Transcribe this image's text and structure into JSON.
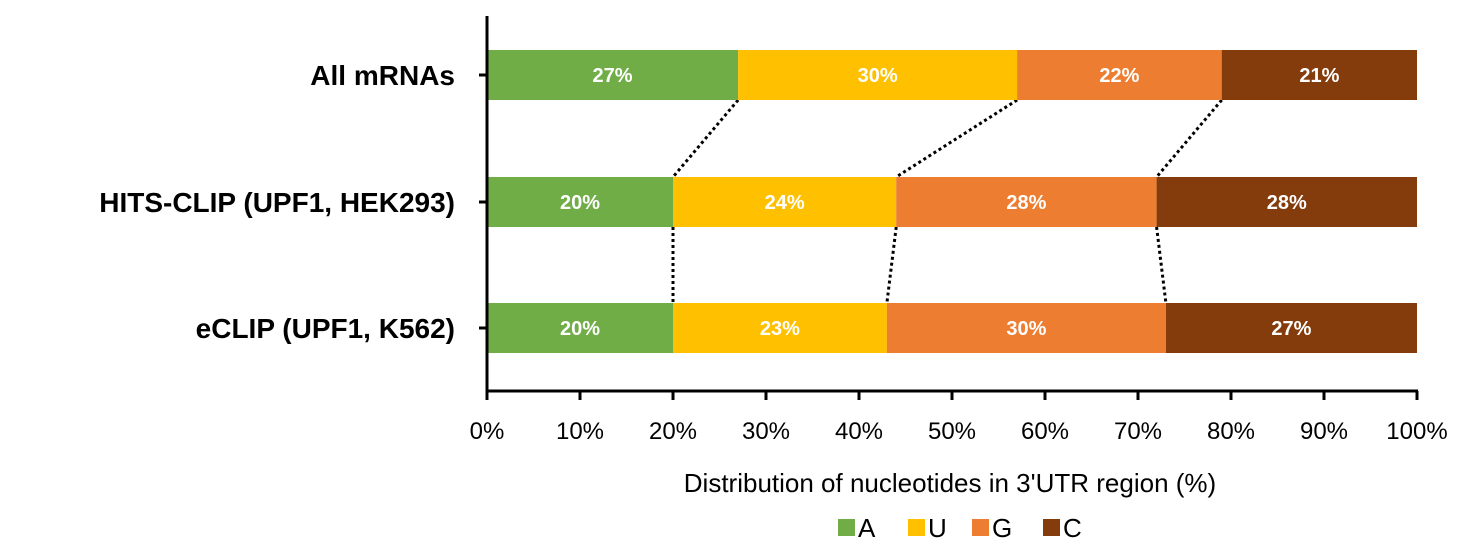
{
  "chart_data": {
    "type": "bar",
    "orientation": "horizontal",
    "stacked": "100%",
    "categories": [
      "All mRNAs",
      "HITS-CLIP (UPF1, HEK293)",
      "eCLIP (UPF1, K562)"
    ],
    "series": [
      {
        "name": "A",
        "color": "#70AD47",
        "values": [
          27,
          20,
          20
        ],
        "labels": [
          "27%",
          "20%",
          "20%"
        ]
      },
      {
        "name": "U",
        "color": "#FFC000",
        "values": [
          30,
          24,
          23
        ],
        "labels": [
          "30%",
          "24%",
          "23%"
        ]
      },
      {
        "name": "G",
        "color": "#ED7D31",
        "values": [
          22,
          28,
          30
        ],
        "labels": [
          "22%",
          "28%",
          "30%"
        ]
      },
      {
        "name": "C",
        "color": "#843C0C",
        "values": [
          21,
          28,
          27
        ],
        "labels": [
          "21%",
          "28%",
          "27%"
        ]
      }
    ],
    "xlabel": "Distribution of nucleotides in 3'UTR region (%)",
    "ylabel": "",
    "xlim": [
      0,
      100
    ],
    "xticks": [
      "0%",
      "10%",
      "20%",
      "30%",
      "40%",
      "50%",
      "60%",
      "70%",
      "80%",
      "90%",
      "100%"
    ],
    "grid": false,
    "legend": "bottom",
    "series_lines": "dotted connectors between series boundaries of adjacent bars"
  }
}
